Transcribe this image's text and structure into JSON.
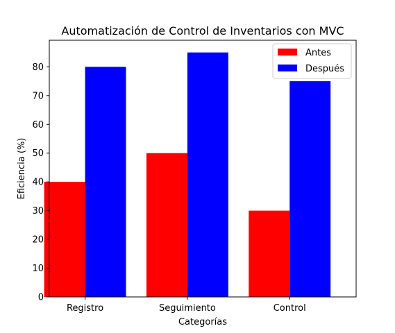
{
  "chart_data": {
    "type": "bar",
    "title": "Automatización de Control de Inventarios con MVC",
    "xlabel": "Categorías",
    "ylabel": "Eficiencia (%)",
    "categories": [
      "Registro",
      "Seguimiento",
      "Control"
    ],
    "series": [
      {
        "name": "Antes",
        "values": [
          40,
          50,
          30
        ],
        "color": "#ff0000"
      },
      {
        "name": "Después",
        "values": [
          80,
          85,
          75
        ],
        "color": "#0000ff"
      }
    ],
    "ylim": [
      0,
      89.25
    ],
    "yticks": [
      0,
      10,
      20,
      30,
      40,
      50,
      60,
      70,
      80
    ],
    "grid": false,
    "legend_position": "top-right"
  }
}
